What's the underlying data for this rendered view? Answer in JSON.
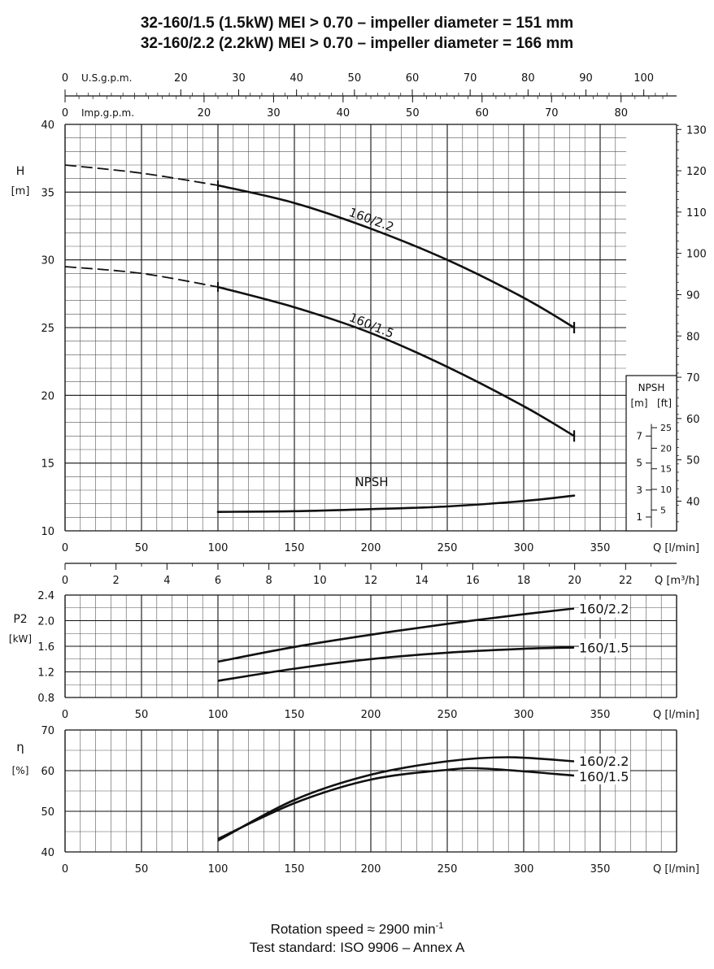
{
  "title": {
    "line1": "32-160/1.5 (1.5kW) MEI > 0.70 – impeller diameter = 151 mm",
    "line2": "32-160/2.2 (2.2kW) MEI > 0.70  – impeller diameter = 166 mm"
  },
  "footer": {
    "rotation_label": "Rotation speed ≈ 2900 min",
    "rotation_exp": "-1",
    "standard": "Test standard: ISO 9906 – Annex A"
  },
  "chart_data": [
    {
      "type": "line",
      "name": "head",
      "ylabel": "H",
      "yunit": "[m]",
      "xlabel": "Q [l/min]",
      "xlim": [
        0,
        400
      ],
      "ylim": [
        10,
        40
      ],
      "xticks": [
        0,
        50,
        100,
        150,
        200,
        250,
        300,
        350
      ],
      "yticks": [
        10,
        15,
        20,
        25,
        30,
        35,
        40
      ],
      "right_axis": {
        "unit": "ft",
        "ticks": [
          40,
          50,
          60,
          70,
          80,
          90,
          100,
          110,
          120,
          130
        ]
      },
      "top_axes": [
        {
          "label": "U.S.g.p.m.",
          "ticks": [
            0,
            20,
            30,
            40,
            50,
            60,
            70,
            80,
            90,
            100
          ]
        },
        {
          "label": "Imp.g.p.m.",
          "ticks": [
            0,
            20,
            30,
            40,
            50,
            60,
            70,
            80
          ]
        }
      ],
      "grid": true,
      "series": [
        {
          "name": "160/2.2",
          "dashed": {
            "x": [
              0,
              50,
              100
            ],
            "y": [
              37.0,
              36.4,
              35.5
            ]
          },
          "x": [
            100,
            150,
            200,
            250,
            300,
            333
          ],
          "y": [
            35.5,
            34.2,
            32.3,
            30.0,
            27.2,
            25.0
          ]
        },
        {
          "name": "160/1.5",
          "dashed": {
            "x": [
              0,
              50,
              100
            ],
            "y": [
              29.5,
              29.0,
              28.0
            ]
          },
          "x": [
            100,
            150,
            200,
            250,
            300,
            333
          ],
          "y": [
            28.0,
            26.5,
            24.6,
            22.1,
            19.2,
            17.0
          ]
        },
        {
          "name": "NPSH",
          "x": [
            100,
            150,
            200,
            250,
            300,
            333
          ],
          "y": [
            11.4,
            11.45,
            11.6,
            11.8,
            12.2,
            12.6
          ]
        }
      ],
      "npsh_scale": {
        "title": "NPSH",
        "units": [
          "[m]",
          "[ft]"
        ],
        "m_ticks": [
          1,
          3,
          5,
          7
        ],
        "ft_ticks": [
          5,
          10,
          15,
          20,
          25
        ]
      }
    },
    {
      "type": "axis",
      "name": "flow-m3h",
      "xlabel": "Q [m³/h]",
      "xlim": [
        0,
        24
      ],
      "ticks": [
        0,
        2,
        4,
        6,
        8,
        10,
        12,
        14,
        16,
        18,
        20,
        22
      ]
    },
    {
      "type": "line",
      "name": "power",
      "ylabel": "P2",
      "yunit": "[kW]",
      "xlabel": "Q [l/min]",
      "xlim": [
        0,
        400
      ],
      "ylim": [
        0.8,
        2.4
      ],
      "xticks": [
        0,
        50,
        100,
        150,
        200,
        250,
        300,
        350
      ],
      "yticks": [
        0.8,
        1.2,
        1.6,
        2.0,
        2.4
      ],
      "grid": true,
      "series": [
        {
          "name": "160/2.2",
          "x": [
            100,
            150,
            200,
            250,
            300,
            333
          ],
          "y": [
            1.36,
            1.59,
            1.78,
            1.95,
            2.1,
            2.19
          ]
        },
        {
          "name": "160/1.5",
          "x": [
            100,
            150,
            200,
            250,
            300,
            333
          ],
          "y": [
            1.06,
            1.25,
            1.4,
            1.5,
            1.56,
            1.58
          ]
        }
      ]
    },
    {
      "type": "line",
      "name": "efficiency",
      "ylabel": "η",
      "yunit": "[%]",
      "xlabel": "Q [l/min]",
      "xlim": [
        0,
        400
      ],
      "ylim": [
        40,
        70
      ],
      "xticks": [
        0,
        50,
        100,
        150,
        200,
        250,
        300,
        350
      ],
      "yticks": [
        40,
        50,
        60,
        70
      ],
      "grid": true,
      "series": [
        {
          "name": "160/2.2",
          "x": [
            100,
            150,
            200,
            250,
            290,
            333
          ],
          "y": [
            42.8,
            52.8,
            59.0,
            62.3,
            63.3,
            62.3
          ]
        },
        {
          "name": "160/1.5",
          "x": [
            100,
            150,
            200,
            250,
            275,
            333
          ],
          "y": [
            43.2,
            52.0,
            57.8,
            60.2,
            60.5,
            58.8
          ]
        }
      ]
    }
  ]
}
